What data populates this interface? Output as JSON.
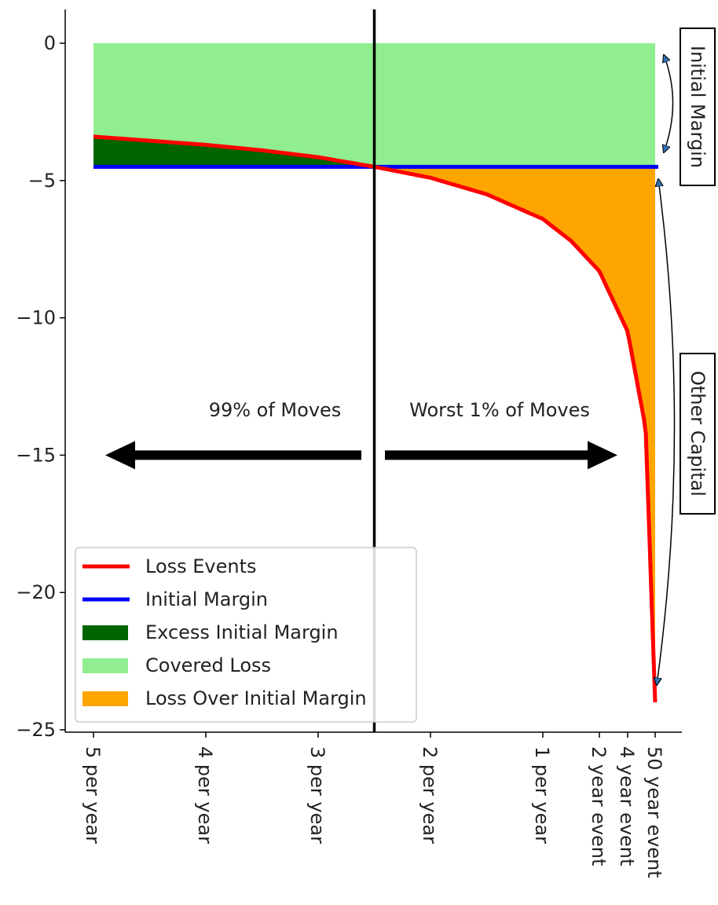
{
  "chart_data": {
    "type": "area",
    "title": "",
    "xlabel": "",
    "ylabel": "",
    "ylim": [
      -25,
      1.2
    ],
    "yticks": [
      0,
      -5,
      -10,
      -15,
      -20,
      -25
    ],
    "ytick_labels": [
      "0",
      "−5",
      "−10",
      "−15",
      "−20",
      "−25"
    ],
    "x_tick_labels": [
      "5 per year",
      "4 per year",
      "3 per year",
      "2 per year",
      "1 per year",
      "2 year event",
      "4 year event",
      "50 year event"
    ],
    "x_tick_freq_per_year": [
      5,
      4,
      3,
      2,
      1,
      0.5,
      0.25,
      0.02
    ],
    "loss_curve": {
      "freq_per_year": [
        5,
        4.5,
        4,
        3.5,
        3,
        2.5,
        2,
        1.5,
        1,
        0.75,
        0.5,
        0.25,
        0.1,
        0.02
      ],
      "loss": [
        -3.4,
        -3.55,
        -3.7,
        -3.9,
        -4.15,
        -4.5,
        -4.9,
        -5.5,
        -6.4,
        -7.2,
        -8.3,
        -10.5,
        -14,
        -24
      ]
    },
    "initial_margin_level": -4.5,
    "cutoff_freq_per_year": 2.5,
    "legend": {
      "position": "lower-left",
      "entries": [
        {
          "label": "Loss Events",
          "color": "#ff0000",
          "kind": "line"
        },
        {
          "label": "Initial Margin",
          "color": "#0000ff",
          "kind": "line"
        },
        {
          "label": "Excess Initial Margin",
          "color": "#006400",
          "kind": "patch"
        },
        {
          "label": "Covered Loss",
          "color": "#90ee90",
          "kind": "patch"
        },
        {
          "label": "Loss Over Initial Margin",
          "color": "#ffa500",
          "kind": "patch"
        }
      ]
    },
    "annotations": {
      "left_arrow_text": "99% of Moves",
      "right_arrow_text": "Worst 1% of Moves",
      "arrow_y_value": -15,
      "initial_margin_box": "Initial Margin",
      "other_capital_box": "Other Capital"
    },
    "grid": false
  }
}
